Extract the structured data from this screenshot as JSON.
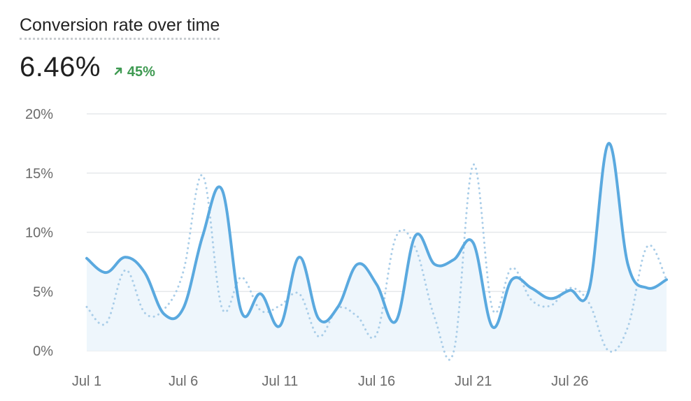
{
  "header": {
    "title": "Conversion rate over time",
    "value": "6.46%",
    "delta": "45%",
    "delta_icon": "arrow-up-right-icon"
  },
  "colors": {
    "primary_line": "#5aa9df",
    "compare_line": "#a9cde8",
    "area_fill": "#eef6fc",
    "grid": "#e6e8eb",
    "delta_positive": "#3f9a52"
  },
  "chart_data": {
    "type": "line",
    "ylim": [
      0,
      20
    ],
    "yticks": [
      0,
      5,
      10,
      15,
      20
    ],
    "ytick_labels": [
      "0%",
      "5%",
      "10%",
      "15%",
      "20%"
    ],
    "xtick_labels": [
      "Jul 1",
      "Jul 6",
      "Jul 11",
      "Jul 16",
      "Jul 21",
      "Jul 26"
    ],
    "xtick_days": [
      1,
      6,
      11,
      16,
      21,
      26
    ],
    "x": [
      1,
      2,
      3,
      4,
      5,
      6,
      7,
      8,
      9,
      10,
      11,
      12,
      13,
      14,
      15,
      16,
      17,
      18,
      19,
      20,
      21,
      22,
      23,
      24,
      25,
      26,
      27,
      28,
      29,
      30,
      31
    ],
    "grid": true,
    "series": [
      {
        "values": [
          7.8,
          6.6,
          7.9,
          6.6,
          3.1,
          3.6,
          9.7,
          13.6,
          3.3,
          4.8,
          2.1,
          7.9,
          2.7,
          3.7,
          7.3,
          5.6,
          2.5,
          9.7,
          7.3,
          7.7,
          9.1,
          2.0,
          6.0,
          5.3,
          4.4,
          5.1,
          5.2,
          17.5,
          7.3,
          5.3,
          6.0
        ]
      },
      {
        "values": [
          3.7,
          2.3,
          6.8,
          3.2,
          3.5,
          6.7,
          14.8,
          3.6,
          6.2,
          3.4,
          3.8,
          4.8,
          1.2,
          3.6,
          2.9,
          1.4,
          9.6,
          8.7,
          2.8,
          0,
          15.7,
          3.5,
          7.0,
          4.3,
          3.8,
          5.3,
          4.0,
          0,
          2.0,
          8.8,
          6.0
        ]
      }
    ]
  }
}
